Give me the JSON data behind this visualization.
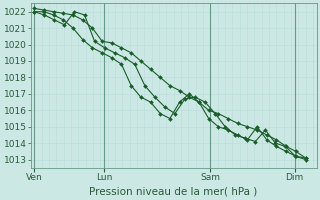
{
  "xlabel": "Pression niveau de la mer( hPa )",
  "ylim": [
    1012.5,
    1022.5
  ],
  "yticks": [
    1013,
    1014,
    1015,
    1016,
    1017,
    1018,
    1019,
    1020,
    1021,
    1022
  ],
  "background_color": "#cce8e4",
  "grid_color_minor": "#b8ddd8",
  "grid_color_major": "#99cccc",
  "line_color": "#1a5c2a",
  "marker_color": "#1a5c2a",
  "x_day_labels": [
    "Ven",
    "Lun",
    "Sam",
    "Dim"
  ],
  "xlim": [
    -0.2,
    40.0
  ],
  "series1": [
    1022.0,
    1022.0,
    1021.8,
    1021.5,
    1021.0,
    1020.3,
    1019.8,
    1019.5,
    1019.2,
    1018.8,
    1017.5,
    1016.8,
    1016.5,
    1015.8,
    1015.5,
    1016.5,
    1017.0,
    1016.5,
    1015.5,
    1015.0,
    1014.8,
    1014.5,
    1014.2,
    1015.0,
    1014.2,
    1013.8,
    1013.5,
    1013.2,
    1013.1
  ],
  "series2": [
    1022.0,
    1021.8,
    1021.5,
    1021.2,
    1022.0,
    1021.8,
    1020.2,
    1019.8,
    1019.5,
    1019.2,
    1018.8,
    1017.5,
    1016.8,
    1016.2,
    1015.8,
    1016.7,
    1016.8,
    1016.5,
    1015.8,
    1015.0,
    1014.5,
    1014.3,
    1014.1,
    1014.8,
    1014.0,
    1013.8,
    1013.2,
    1013.0
  ],
  "series3": [
    1022.2,
    1022.1,
    1022.0,
    1021.9,
    1021.8,
    1021.5,
    1021.0,
    1020.2,
    1020.1,
    1019.8,
    1019.5,
    1019.0,
    1018.5,
    1018.0,
    1017.5,
    1017.2,
    1016.8,
    1016.5,
    1016.0,
    1015.8,
    1015.5,
    1015.2,
    1015.0,
    1014.8,
    1014.5,
    1014.2,
    1013.8,
    1013.5,
    1013.1
  ]
}
